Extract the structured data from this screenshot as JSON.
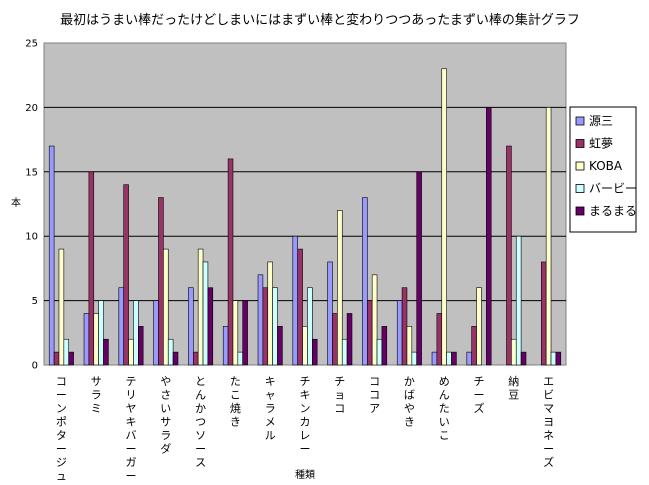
{
  "chart_data": {
    "type": "bar",
    "title": "最初はうまい棒だったけどしまいにはまずい棒と変わりつつあったまずい棒の集計グラフ",
    "xlabel": "種類",
    "ylabel": "本",
    "ylim": [
      0,
      25
    ],
    "yticks": [
      0,
      5,
      10,
      15,
      20,
      25
    ],
    "grid": true,
    "legend_position": "right",
    "categories": [
      "コーンポタージュ",
      "サラミ",
      "テリヤキバーガー",
      "やさいサラダ",
      "とんかつソース",
      "たこ焼き",
      "キャラメル",
      "チキンカレー",
      "チョコ",
      "ココア",
      "かばやき",
      "めんたいこ",
      "チーズ",
      "納豆",
      "エビマヨネーズ"
    ],
    "series": [
      {
        "name": "源三",
        "color": "#9999ff",
        "values": [
          17,
          4,
          6,
          5,
          6,
          3,
          7,
          10,
          8,
          13,
          5,
          1,
          1,
          0,
          0
        ]
      },
      {
        "name": "虹夢",
        "color": "#993366",
        "values": [
          1,
          15,
          14,
          13,
          1,
          16,
          6,
          9,
          4,
          5,
          6,
          4,
          3,
          17,
          8
        ]
      },
      {
        "name": "KOBA",
        "color": "#ffffcc",
        "values": [
          9,
          4,
          2,
          9,
          9,
          5,
          8,
          3,
          12,
          7,
          3,
          23,
          6,
          2,
          20
        ]
      },
      {
        "name": "バービー",
        "color": "#ccffff",
        "values": [
          2,
          5,
          5,
          2,
          8,
          1,
          6,
          6,
          2,
          2,
          1,
          1,
          0,
          10,
          1
        ]
      },
      {
        "name": "まるまる",
        "color": "#660066",
        "values": [
          1,
          2,
          3,
          1,
          6,
          5,
          3,
          2,
          4,
          3,
          15,
          1,
          20,
          1,
          1
        ]
      }
    ]
  }
}
